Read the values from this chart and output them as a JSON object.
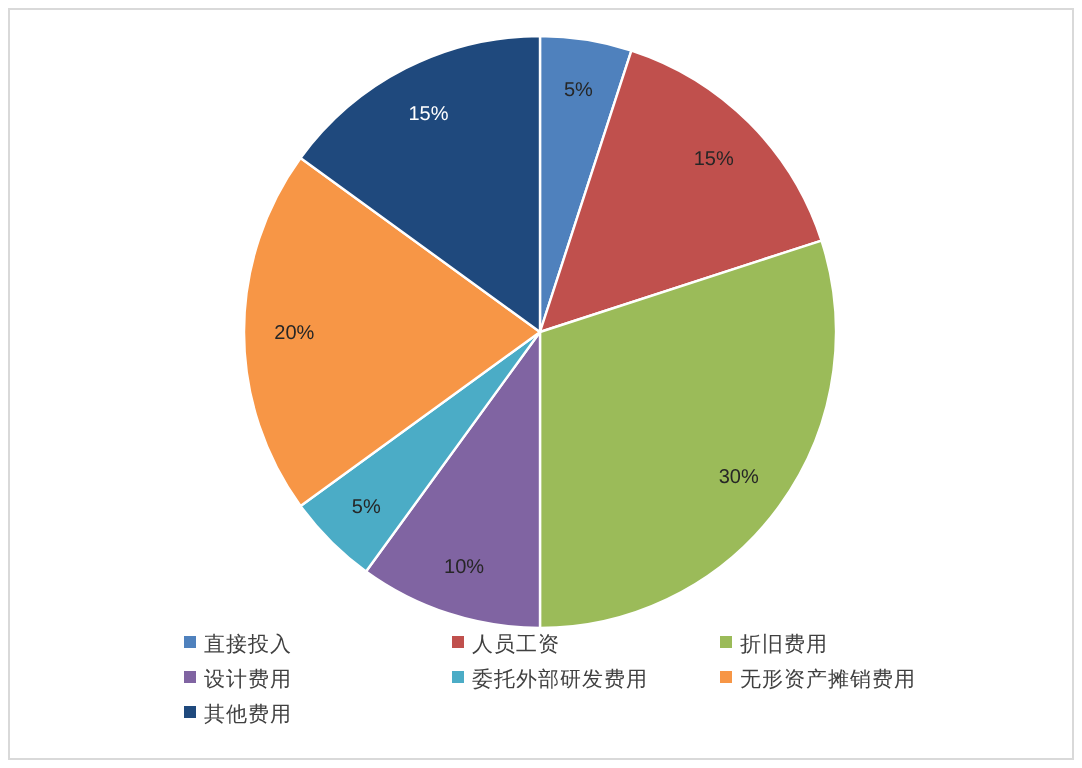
{
  "chart_data": {
    "type": "pie",
    "categories": [
      "直接投入",
      "人员工资",
      "折旧费用",
      "设计费用",
      "委托外部研发费用",
      "无形资产摊销费用",
      "其他费用"
    ],
    "values": [
      5,
      15,
      30,
      10,
      5,
      20,
      15
    ],
    "value_labels": [
      "5%",
      "15%",
      "30%",
      "10%",
      "5%",
      "20%",
      "15%"
    ],
    "colors": [
      "#4f81bd",
      "#c0504d",
      "#9bbb59",
      "#8064a2",
      "#4bacc6",
      "#f79646",
      "#1f497d"
    ],
    "legend": "bottom"
  }
}
